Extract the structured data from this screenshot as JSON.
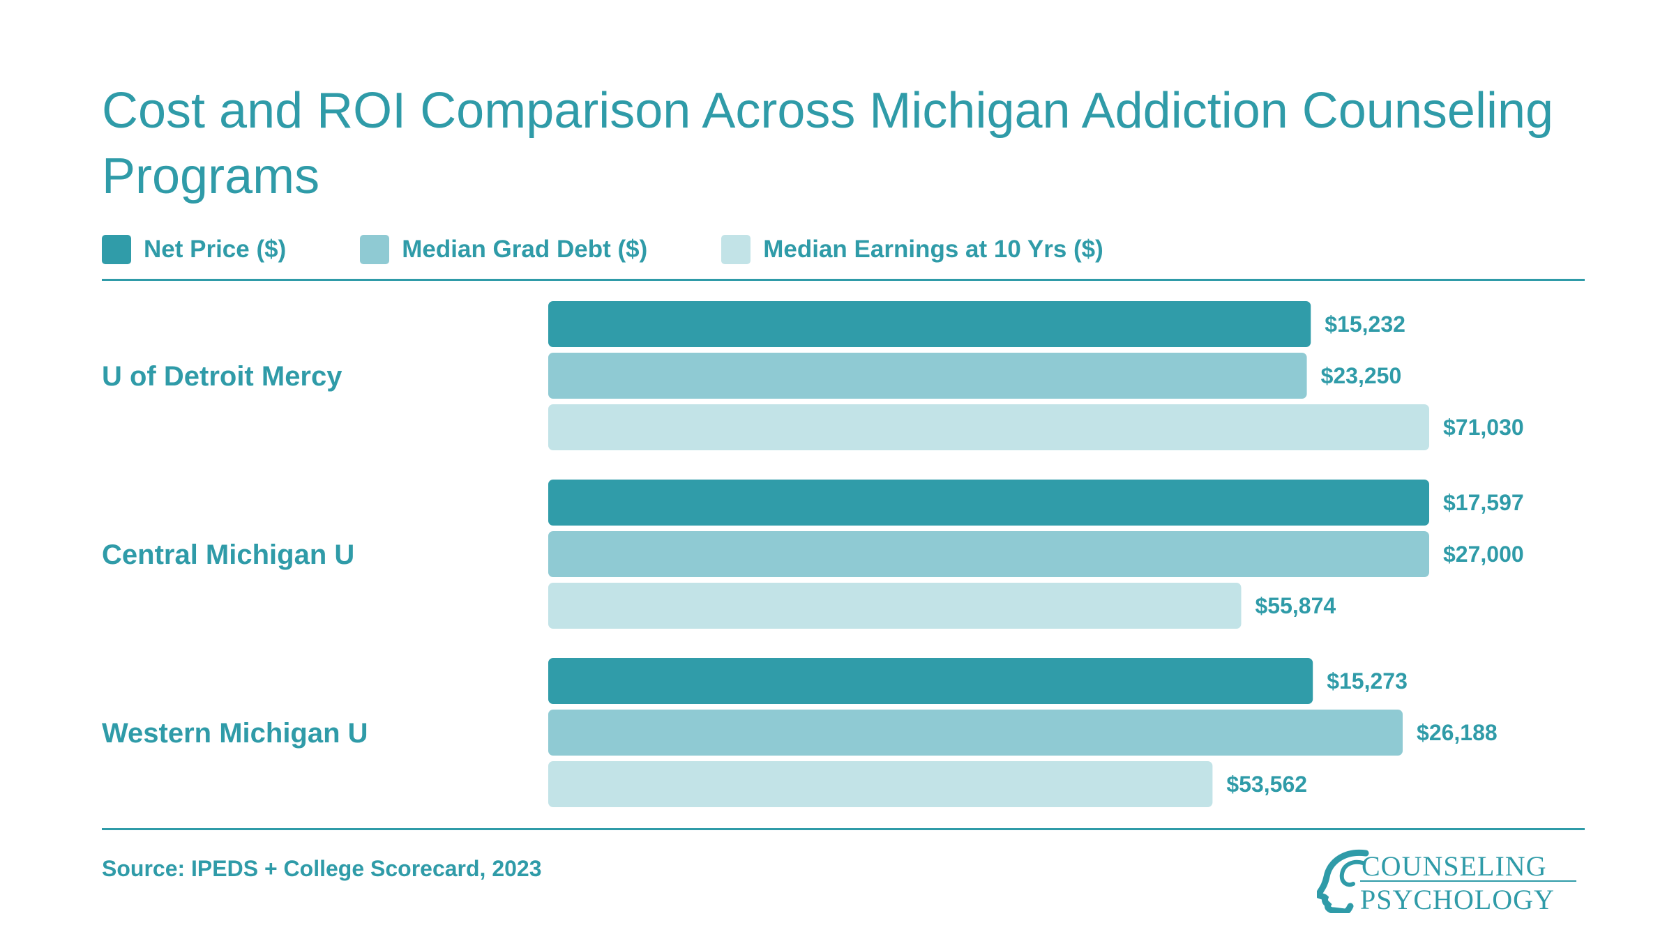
{
  "chart_data": {
    "type": "bar",
    "orientation": "horizontal",
    "title": "Cost and ROI Comparison Across Michigan Addiction Counseling Programs",
    "categories": [
      "U of Detroit Mercy",
      "Central Michigan U",
      "Western Michigan U"
    ],
    "series": [
      {
        "name": "Net Price ($)",
        "color": "#309ca9",
        "values": [
          15232,
          17597,
          15273
        ],
        "labels": [
          "$15,232",
          "$17,597",
          "$15,273"
        ]
      },
      {
        "name": "Median Grad Debt ($)",
        "color": "#8fcad3",
        "values": [
          23250,
          27000,
          26188
        ],
        "labels": [
          "$23,250",
          "$27,000",
          "$26,188"
        ]
      },
      {
        "name": "Median Earnings at 10 Yrs ($)",
        "color": "#c2e3e7",
        "values": [
          71030,
          55874,
          53562
        ],
        "labels": [
          "$71,030",
          "$55,874",
          "$53,562"
        ]
      }
    ],
    "scale": "each series scaled to its own maximum",
    "legend": "top-left",
    "grid": false
  },
  "source": "Source: IPEDS + College Scorecard, 2023",
  "logo": {
    "line1": "COUNSELING",
    "line2": "PSYCHOLOGY",
    "icon": "head-profile-icon"
  },
  "colors": {
    "accent": "#2f9ba8"
  }
}
